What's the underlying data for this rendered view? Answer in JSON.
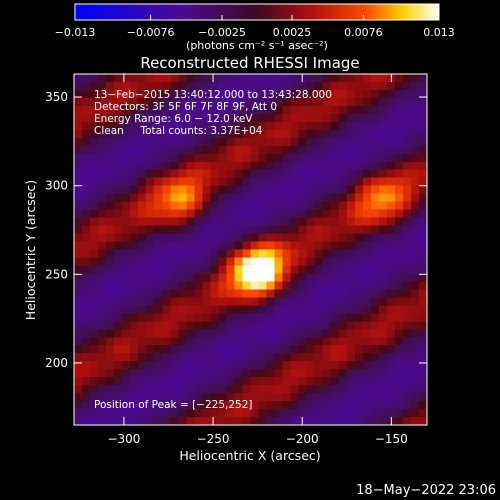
{
  "chart_data": {
    "type": "heatmap",
    "title": "Reconstructed RHESSI Image",
    "xlabel": "Heliocentric X (arcsec)",
    "ylabel": "Heliocentric Y (arcsec)",
    "xlim": [
      -328,
      -130
    ],
    "ylim": [
      165,
      363
    ],
    "x_ticks": [
      {
        "value": -300,
        "label": "−300"
      },
      {
        "value": -250,
        "label": "−250"
      },
      {
        "value": -200,
        "label": "−200"
      },
      {
        "value": -150,
        "label": "−150"
      }
    ],
    "y_ticks": [
      {
        "value": 200,
        "label": "200"
      },
      {
        "value": 250,
        "label": "250"
      },
      {
        "value": 300,
        "label": "300"
      },
      {
        "value": 350,
        "label": "350"
      }
    ],
    "colorbar": {
      "range": [
        -0.013,
        0.013
      ],
      "tick_values": [
        -0.013,
        -0.0076,
        -0.0025,
        0.0025,
        0.0076,
        0.013
      ],
      "tick_labels": [
        "−0.013",
        "−0.0076",
        "−0.0025",
        "0.0025",
        "0.0076",
        "0.013"
      ],
      "unit_label": "(photons cm⁻² s⁻¹ asec⁻²)",
      "colormap": "blue-purple-red-yellow-white"
    },
    "info_lines": [
      "13−Feb−2015 13:40:12.000 to 13:43:28.000",
      "Detectors: 3F 5F 6F 7F 8F 9F, Att 0",
      "Energy Range: 6.0 − 12.0 keV",
      "Clean     Total counts: 3.37E+04"
    ],
    "peak_label": "Position of Peak = [−225,252]",
    "peak": {
      "x": -225,
      "y": 252
    },
    "sources": [
      {
        "x": -225,
        "y": 252,
        "amp": 0.0125
      },
      {
        "x": -268,
        "y": 290,
        "amp": 0.0065
      },
      {
        "x": -155,
        "y": 292,
        "amp": 0.0058
      }
    ],
    "fringe_angle_deg": 30,
    "fringe_period_arcsec": 62
  },
  "timestamp": "18−May−2022 23:06"
}
